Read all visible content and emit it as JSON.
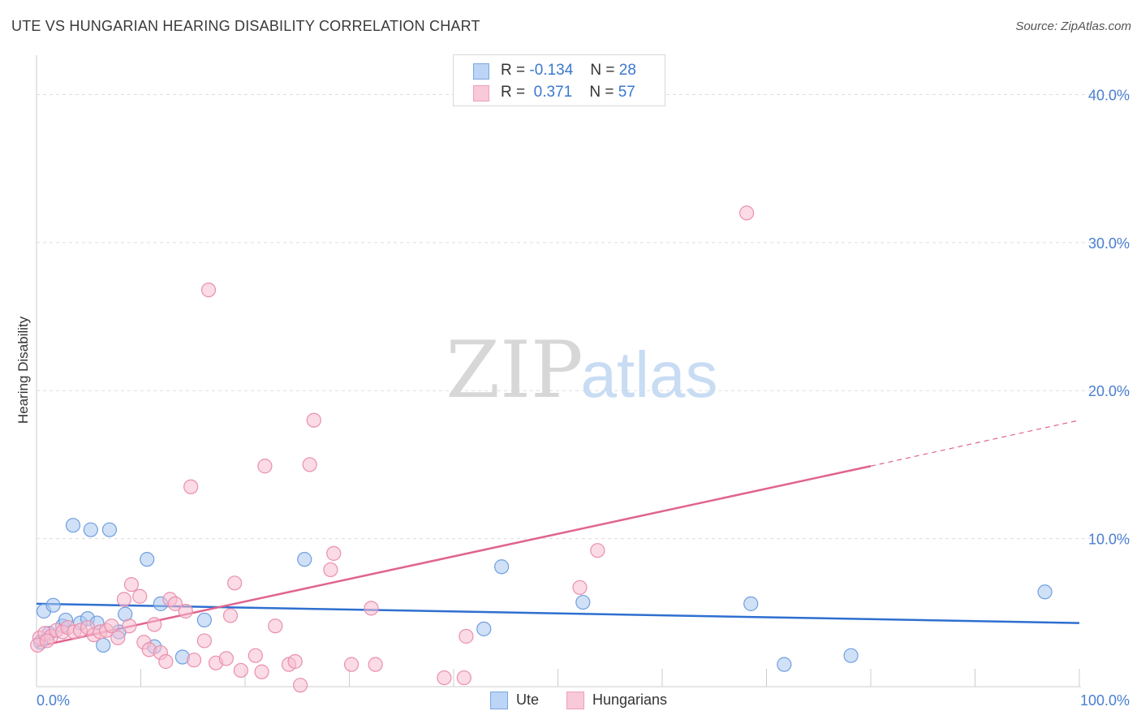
{
  "title": "UTE VS HUNGARIAN HEARING DISABILITY CORRELATION CHART",
  "source": "Source: ZipAtlas.com",
  "watermark": {
    "zip": "ZIP",
    "atlas": "atlas"
  },
  "legend": {
    "ute": {
      "r_label": "R =",
      "r_value": "-0.134",
      "n_label": "N =",
      "n_value": "28"
    },
    "hungarians": {
      "r_label": "R =",
      "r_value": " 0.371",
      "n_label": "N =",
      "n_value": "57"
    }
  },
  "bottom_legend": {
    "ute": "Ute",
    "hungarians": "Hungarians"
  },
  "colors": {
    "ute_fill": "#a9c8f0",
    "ute_stroke": "#6f9ee0",
    "ute_line": "#2f6fd0",
    "hun_fill": "#f7bdd0",
    "hun_stroke": "#e98fae",
    "hun_line": "#e0648f",
    "tick_text": "#4a7fcf",
    "grid": "#dddddd"
  },
  "chart_data": {
    "type": "scatter",
    "title": "UTE VS HUNGARIAN HEARING DISABILITY CORRELATION CHART",
    "xlabel": "",
    "ylabel": "Hearing Disability",
    "xlim": [
      0,
      100
    ],
    "ylim": [
      0,
      42
    ],
    "x_tick_labels": [
      "0.0%",
      "100.0%"
    ],
    "y_ticks": [
      10,
      20,
      30,
      40
    ],
    "y_tick_labels": [
      "10.0%",
      "20.0%",
      "30.0%",
      "40.0%"
    ],
    "series": [
      {
        "name": "Ute",
        "points": [
          [
            0.7,
            5.1
          ],
          [
            1.6,
            5.5
          ],
          [
            2.5,
            4.1
          ],
          [
            2.8,
            4.5
          ],
          [
            3.5,
            10.9
          ],
          [
            4.2,
            4.3
          ],
          [
            4.9,
            4.6
          ],
          [
            5.2,
            10.6
          ],
          [
            5.8,
            4.3
          ],
          [
            6.4,
            2.8
          ],
          [
            7.0,
            10.6
          ],
          [
            7.9,
            3.7
          ],
          [
            8.5,
            4.9
          ],
          [
            10.6,
            8.6
          ],
          [
            11.3,
            2.7
          ],
          [
            11.9,
            5.6
          ],
          [
            14.0,
            2.0
          ],
          [
            16.1,
            4.5
          ],
          [
            25.7,
            8.6
          ],
          [
            42.9,
            3.9
          ],
          [
            44.6,
            8.1
          ],
          [
            52.4,
            5.7
          ],
          [
            68.5,
            5.6
          ],
          [
            71.7,
            1.5
          ],
          [
            78.1,
            2.1
          ],
          [
            96.7,
            6.4
          ],
          [
            0.4,
            3.0
          ],
          [
            1.2,
            3.6
          ]
        ],
        "trend": {
          "x0": 0,
          "y0": 5.6,
          "x1": 100,
          "y1": 4.3
        }
      },
      {
        "name": "Hungarians",
        "points": [
          [
            0.3,
            3.3
          ],
          [
            0.8,
            3.6
          ],
          [
            1.4,
            3.4
          ],
          [
            1.9,
            3.8
          ],
          [
            2.5,
            3.7
          ],
          [
            3.0,
            4.0
          ],
          [
            3.6,
            3.7
          ],
          [
            4.2,
            3.8
          ],
          [
            4.9,
            4.0
          ],
          [
            5.5,
            3.5
          ],
          [
            6.1,
            3.7
          ],
          [
            6.7,
            3.8
          ],
          [
            7.2,
            4.1
          ],
          [
            7.8,
            3.3
          ],
          [
            8.4,
            5.9
          ],
          [
            8.9,
            4.1
          ],
          [
            9.1,
            6.9
          ],
          [
            9.9,
            6.1
          ],
          [
            10.3,
            3.0
          ],
          [
            10.8,
            2.5
          ],
          [
            11.3,
            4.2
          ],
          [
            11.9,
            2.3
          ],
          [
            12.4,
            1.7
          ],
          [
            12.8,
            5.9
          ],
          [
            13.3,
            5.6
          ],
          [
            14.3,
            5.1
          ],
          [
            14.8,
            13.5
          ],
          [
            15.1,
            1.8
          ],
          [
            16.1,
            3.1
          ],
          [
            16.5,
            26.8
          ],
          [
            17.2,
            1.6
          ],
          [
            18.2,
            1.9
          ],
          [
            18.6,
            4.8
          ],
          [
            19.0,
            7.0
          ],
          [
            19.6,
            1.1
          ],
          [
            21.0,
            2.1
          ],
          [
            21.6,
            1.0
          ],
          [
            21.9,
            14.9
          ],
          [
            22.9,
            4.1
          ],
          [
            24.2,
            1.5
          ],
          [
            24.8,
            1.7
          ],
          [
            25.3,
            0.1
          ],
          [
            26.2,
            15.0
          ],
          [
            26.6,
            18.0
          ],
          [
            28.2,
            7.9
          ],
          [
            28.5,
            9.0
          ],
          [
            30.2,
            1.5
          ],
          [
            32.1,
            5.3
          ],
          [
            32.5,
            1.5
          ],
          [
            39.1,
            0.6
          ],
          [
            41.0,
            0.6
          ],
          [
            41.2,
            3.4
          ],
          [
            52.1,
            6.7
          ],
          [
            53.8,
            9.2
          ],
          [
            68.1,
            32.0
          ],
          [
            0.1,
            2.8
          ],
          [
            1.0,
            3.1
          ]
        ],
        "trend": {
          "x0": 0,
          "y0": 2.7,
          "x1": 80,
          "y1": 14.9
        },
        "trend_extension": {
          "x0": 80,
          "y0": 14.9,
          "x1": 100,
          "y1": 18.0
        }
      }
    ]
  }
}
